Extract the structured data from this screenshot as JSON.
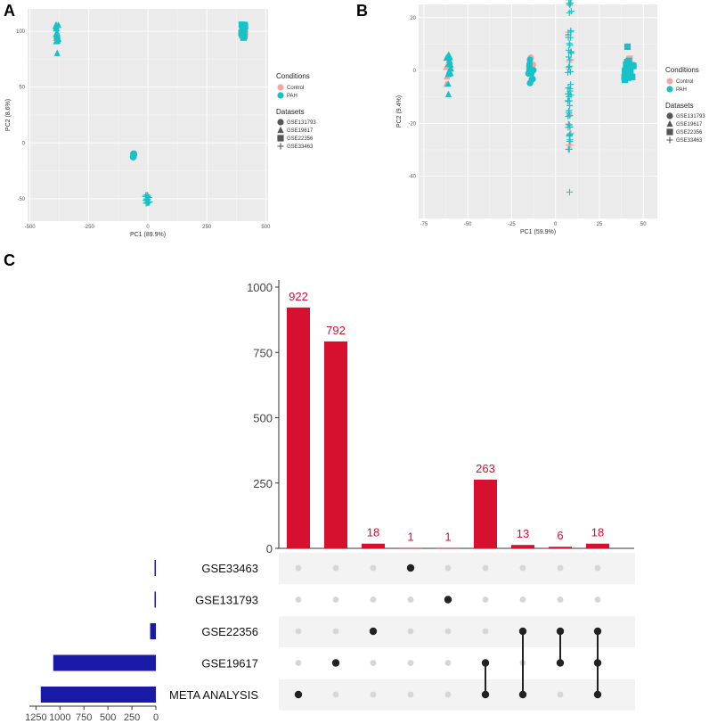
{
  "panels": {
    "a": "A",
    "b": "B",
    "c": "C"
  },
  "colors": {
    "control": "#f4a6a0",
    "pah": "#17c1c8",
    "panel_bg": "#ebebeb",
    "bar_red": "#d7102f",
    "bar_blue": "#1a1aa8",
    "dot_on": "#222222",
    "dot_off": "#d6d6d6",
    "stripe": "#f3f3f3"
  },
  "chart_data": [
    {
      "type": "scatter",
      "panel": "A",
      "xlabel": "PC1 (89.9%)",
      "ylabel": "PC2 (8.6%)",
      "xlim": [
        -510,
        510
      ],
      "ylim": [
        -70,
        120
      ],
      "xticks": [
        -500,
        -250,
        0,
        250,
        500
      ],
      "xtick_labels": [
        "-500",
        "-250",
        "0",
        "250",
        "500"
      ],
      "yticks": [
        -50,
        0,
        50,
        100
      ],
      "ytick_labels": [
        "-50",
        "0",
        "50",
        "100"
      ],
      "legend": {
        "conditions_title": "Conditions",
        "conditions": [
          "Control",
          "PAH"
        ],
        "datasets_title": "Datasets",
        "datasets": [
          "GSE131793",
          "GSE19617",
          "GSE22356",
          "GSE33463"
        ]
      },
      "clusters": [
        {
          "dataset": "GSE19617",
          "shape": "triangle",
          "x": -385,
          "y": 98,
          "spread": [
            6,
            8
          ],
          "pah": 22,
          "control": 3
        },
        {
          "dataset": "GSE19617",
          "shape": "triangle",
          "x": -385,
          "y": 80,
          "spread": [
            1,
            1
          ],
          "pah": 1,
          "control": 0
        },
        {
          "dataset": "GSE22356",
          "shape": "square",
          "x": 405,
          "y": 100,
          "spread": [
            8,
            6
          ],
          "pah": 18,
          "control": 6
        },
        {
          "dataset": "GSE131793",
          "shape": "circle",
          "x": -60,
          "y": -11,
          "spread": [
            3,
            2
          ],
          "pah": 5,
          "control": 2
        },
        {
          "dataset": "GSE33463",
          "shape": "plus",
          "x": 0,
          "y": -50,
          "spread": [
            10,
            4
          ],
          "pah": 16,
          "control": 2
        }
      ]
    },
    {
      "type": "scatter",
      "panel": "B",
      "xlabel": "PC1 (59.9%)",
      "ylabel": "PC2 (9.4%)",
      "xlim": [
        -78,
        58
      ],
      "ylim": [
        -56,
        25
      ],
      "xticks": [
        -75,
        -50,
        -25,
        0,
        25,
        50
      ],
      "xtick_labels": [
        "-75",
        "-50",
        "-25",
        "0",
        "25",
        "50"
      ],
      "yticks": [
        -40,
        -20,
        0,
        20
      ],
      "ytick_labels": [
        "-40",
        "-20",
        "0",
        "20"
      ],
      "legend": {
        "conditions_title": "Conditions",
        "conditions": [
          "Control",
          "PAH"
        ],
        "datasets_title": "Datasets",
        "datasets": [
          "GSE131793",
          "GSE19617",
          "GSE22356",
          "GSE33463"
        ]
      },
      "clusters": [
        {
          "dataset": "GSE19617",
          "shape": "triangle",
          "x": -61,
          "y": 0,
          "spread": [
            1.5,
            6
          ],
          "pah": 16,
          "control": 3
        },
        {
          "dataset": "GSE131793",
          "shape": "circle",
          "x": -14,
          "y": 0,
          "spread": [
            1.5,
            5
          ],
          "pah": 12,
          "control": 4
        },
        {
          "dataset": "GSE33463",
          "shape": "plus",
          "x": 8,
          "y": 0,
          "spread": [
            1,
            30
          ],
          "pah": 55,
          "control": 12
        },
        {
          "dataset": "GSE22356",
          "shape": "square",
          "x": 42,
          "y": 0,
          "spread": [
            3,
            5
          ],
          "pah": 18,
          "control": 6
        }
      ],
      "outliers": [
        {
          "shape": "plus",
          "x": 8,
          "y": -46
        },
        {
          "shape": "triangle",
          "x": -61,
          "y": -9
        },
        {
          "shape": "square",
          "x": 41,
          "y": 9
        }
      ]
    },
    {
      "type": "bar",
      "panel": "C",
      "subtype": "upset",
      "ylim": [
        0,
        1000
      ],
      "yticks": [
        0,
        250,
        500,
        750,
        1000
      ],
      "ytick_labels": [
        "0",
        "250",
        "500",
        "750",
        "1000"
      ],
      "values": [
        922,
        792,
        18,
        1,
        1,
        263,
        13,
        6,
        18
      ],
      "value_labels": [
        "922",
        "792",
        "18",
        "1",
        "1",
        "263",
        "13",
        "6",
        "18"
      ],
      "sets": [
        "GSE33463",
        "GSE131793",
        "GSE22356",
        "GSE19617",
        "META ANALYSIS"
      ],
      "set_sizes": [
        3,
        3,
        60,
        1070,
        1200
      ],
      "set_size_xlim": [
        0,
        1300
      ],
      "set_size_ticks": [
        0,
        250,
        500,
        750,
        1000,
        1250
      ],
      "set_size_tick_labels": [
        "0",
        "250",
        "500",
        "750",
        "1000",
        "1250"
      ],
      "intersections": [
        [
          4
        ],
        [
          3
        ],
        [
          2
        ],
        [
          0
        ],
        [
          1
        ],
        [
          3,
          4
        ],
        [
          2,
          4
        ],
        [
          2,
          3
        ],
        [
          2,
          3,
          4
        ]
      ]
    }
  ]
}
